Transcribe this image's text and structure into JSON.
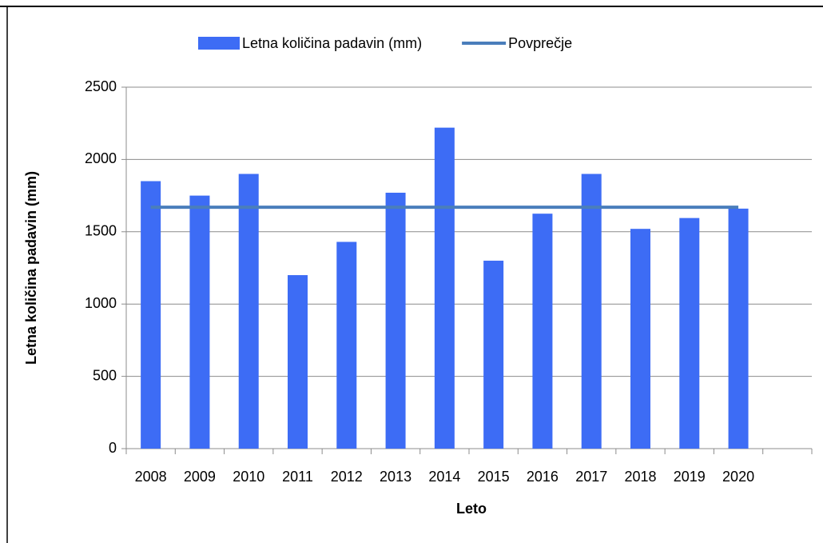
{
  "chart_data": {
    "type": "bar",
    "categories": [
      "2008",
      "2009",
      "2010",
      "2011",
      "2012",
      "2013",
      "2014",
      "2015",
      "2016",
      "2017",
      "2018",
      "2019",
      "2020",
      null
    ],
    "series": [
      {
        "name": "Letna količina padavin (mm)",
        "type": "bar",
        "color": "#3d6cf5",
        "values": [
          1850,
          1750,
          1900,
          1200,
          1430,
          1770,
          2220,
          1300,
          1625,
          1900,
          1520,
          1595,
          1660,
          null
        ]
      },
      {
        "name": "Povprečje",
        "type": "line",
        "color": "#4a7ebb",
        "values": [
          1670,
          1670,
          1670,
          1670,
          1670,
          1670,
          1670,
          1670,
          1670,
          1670,
          1670,
          1670,
          1670,
          null
        ]
      }
    ],
    "x_label": "Leto",
    "y_label": "Letna količina padavin (mm)",
    "ylim": [
      0,
      2500
    ],
    "yticks": [
      0,
      500,
      1000,
      1500,
      2000,
      2500
    ],
    "grid": true,
    "legend": "top"
  }
}
